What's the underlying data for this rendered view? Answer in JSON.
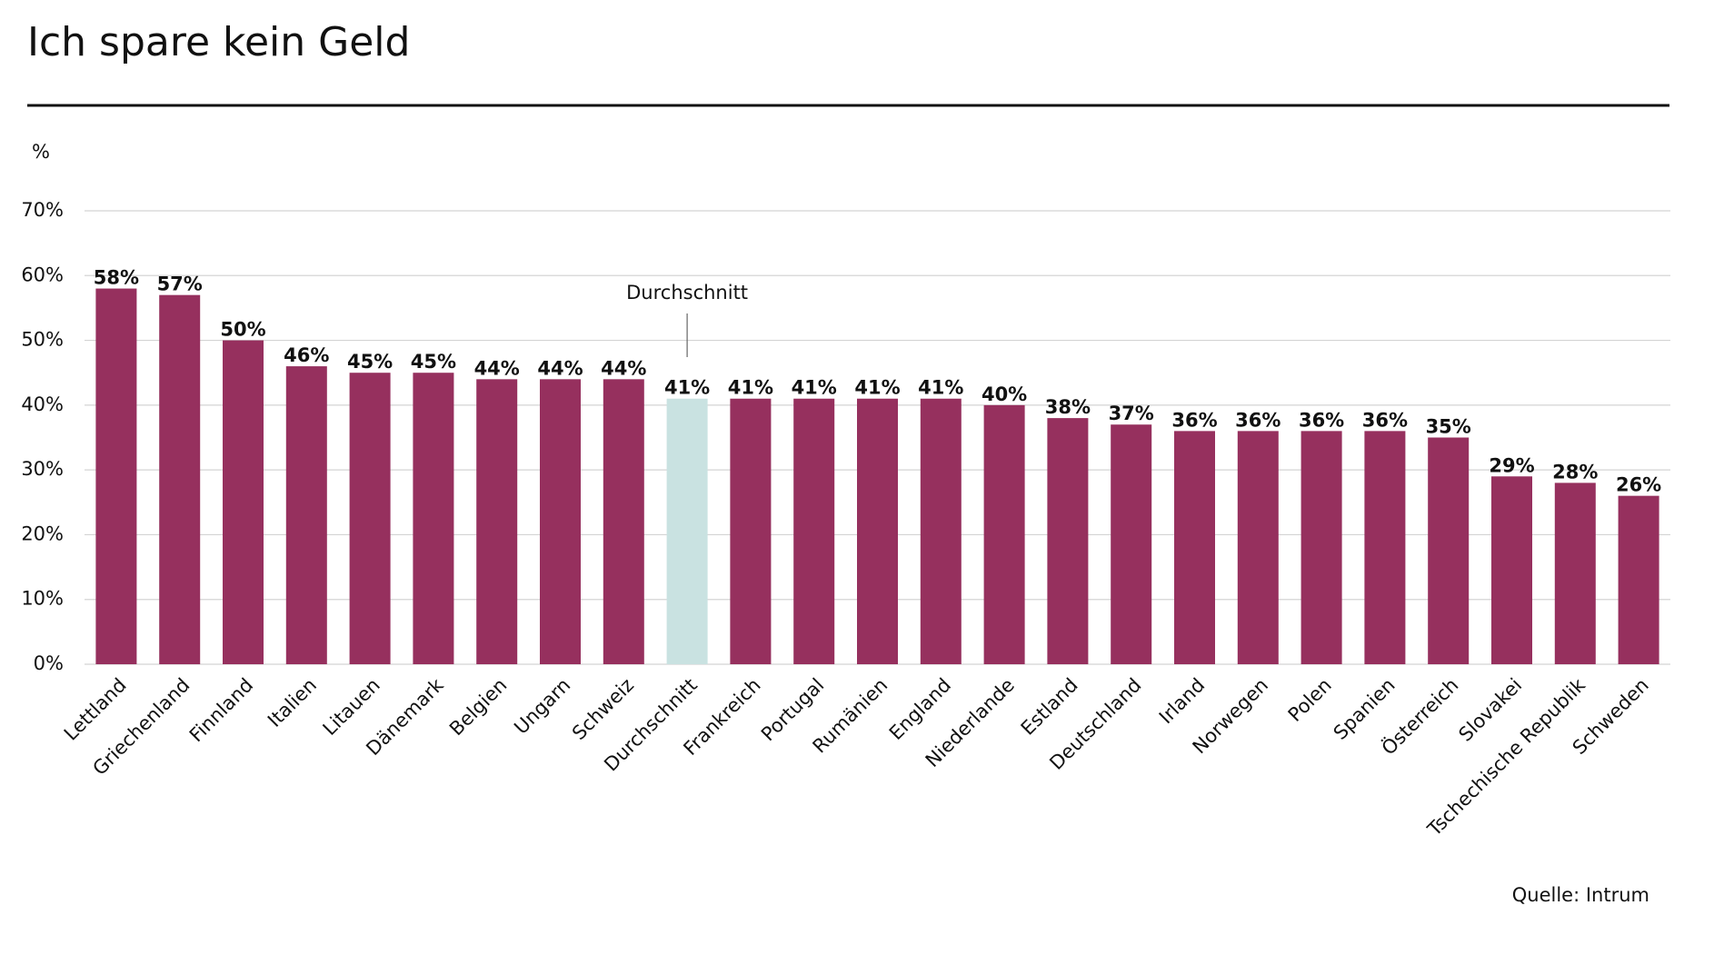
{
  "chart_data": {
    "type": "bar",
    "title": "Ich spare kein Geld",
    "y_unit_label": "%",
    "categories": [
      "Lettland",
      "Griechenland",
      "Finnland",
      "Italien",
      "Litauen",
      "Dänemark",
      "Belgien",
      "Ungarn",
      "Schweiz",
      "Durchschnitt",
      "Frankreich",
      "Portugal",
      "Rumänien",
      "England",
      "Niederlande",
      "Estland",
      "Deutschland",
      "Irland",
      "Norwegen",
      "Polen",
      "Spanien",
      "Österreich",
      "Slovakei",
      "Tschechische Republik",
      "Schweden"
    ],
    "values": [
      58,
      57,
      50,
      46,
      45,
      45,
      44,
      44,
      44,
      41,
      41,
      41,
      41,
      41,
      40,
      38,
      37,
      36,
      36,
      36,
      36,
      35,
      29,
      28,
      26
    ],
    "value_labels": [
      "58%",
      "57%",
      "50%",
      "46%",
      "45%",
      "45%",
      "44%",
      "44%",
      "44%",
      "41%",
      "41%",
      "41%",
      "41%",
      "41%",
      "40%",
      "38%",
      "37%",
      "36%",
      "36%",
      "36%",
      "36%",
      "35%",
      "29%",
      "28%",
      "26%"
    ],
    "colors": [
      "#96305e",
      "#96305e",
      "#96305e",
      "#96305e",
      "#96305e",
      "#96305e",
      "#96305e",
      "#96305e",
      "#96305e",
      "#c9e2e1",
      "#96305e",
      "#96305e",
      "#96305e",
      "#96305e",
      "#96305e",
      "#96305e",
      "#96305e",
      "#96305e",
      "#96305e",
      "#96305e",
      "#96305e",
      "#96305e",
      "#96305e",
      "#96305e",
      "#96305e"
    ],
    "ylim": [
      0,
      70
    ],
    "yticks": [
      {
        "value": 0,
        "label": "0%"
      },
      {
        "value": 10,
        "label": "10%"
      },
      {
        "value": 20,
        "label": "20%"
      },
      {
        "value": 30,
        "label": "30%"
      },
      {
        "value": 40,
        "label": "40%"
      },
      {
        "value": 50,
        "label": "50%"
      },
      {
        "value": 60,
        "label": "60%"
      },
      {
        "value": 70,
        "label": "70%"
      }
    ],
    "grid": true,
    "annotations": [
      {
        "text": "Durchschnitt"
      }
    ],
    "source": "Quelle: Intrum"
  }
}
